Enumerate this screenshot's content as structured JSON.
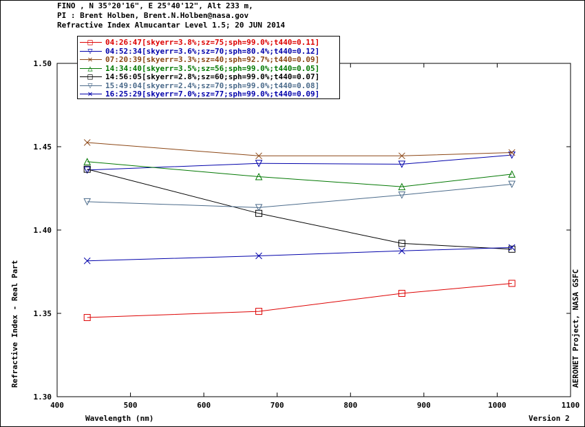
{
  "header": {
    "line1": "FINO , N 35°20'16\", E 25°40'12\", Alt 233 m,",
    "line2": "PI : Brent Holben, Brent.N.Holben@nasa.gov",
    "line3": "Refractive Index Almucantar Level 1.5; 20 JUN 2014"
  },
  "side_label": "AERONET Project, NASA GSFC",
  "version_label": "Version 2",
  "chart_data": {
    "type": "line",
    "xlabel": "Wavelength (nm)",
    "ylabel": "Refractive Index - Real Part",
    "xlim": [
      400,
      1100
    ],
    "ylim": [
      1.3,
      1.5
    ],
    "x_ticks": [
      "400",
      "500",
      "600",
      "700",
      "800",
      "900",
      "1000",
      "1100"
    ],
    "y_ticks": [
      "1.30",
      "1.35",
      "1.40",
      "1.45",
      "1.50"
    ],
    "x": [
      441,
      675,
      870,
      1020
    ],
    "series": [
      {
        "name": "04:26:47[skyerr=3.8%;sz=75;sph=99.0%;t440=0.11]",
        "color": "#dd0000",
        "marker": "square",
        "values": [
          1.3475,
          1.3512,
          1.362,
          1.368
        ]
      },
      {
        "name": "04:52:34[skyerr=3.6%;sz=70;sph=80.4%;t440=0.12]",
        "color": "#0000aa",
        "marker": "triangle-down",
        "values": [
          1.436,
          1.44,
          1.4395,
          1.445
        ]
      },
      {
        "name": "07:20:39[skyerr=3.3%;sz=40;sph=92.7%;t440=0.09]",
        "color": "#8b4513",
        "marker": "x",
        "values": [
          1.4525,
          1.4445,
          1.4445,
          1.4465
        ]
      },
      {
        "name": "14:34:40[skyerr=3.5%;sz=56;sph=99.0%;t440=0.05]",
        "color": "#007700",
        "marker": "triangle-up",
        "values": [
          1.441,
          1.432,
          1.426,
          1.4335
        ]
      },
      {
        "name": "14:56:05[skyerr=2.8%;sz=60;sph=99.0%;t440=0.07]",
        "color": "#000000",
        "marker": "square",
        "values": [
          1.4365,
          1.41,
          1.392,
          1.3885
        ]
      },
      {
        "name": "15:49:04[skyerr=2.4%;sz=70;sph=99.0%;t440=0.08]",
        "color": "#4a6a8a",
        "marker": "triangle-down",
        "values": [
          1.417,
          1.4135,
          1.421,
          1.4275
        ]
      },
      {
        "name": "16:25:29[skyerr=7.0%;sz=77;sph=99.0%;t440=0.09]",
        "color": "#0000aa",
        "marker": "x",
        "values": [
          1.3815,
          1.3845,
          1.3875,
          1.3895
        ]
      }
    ]
  }
}
